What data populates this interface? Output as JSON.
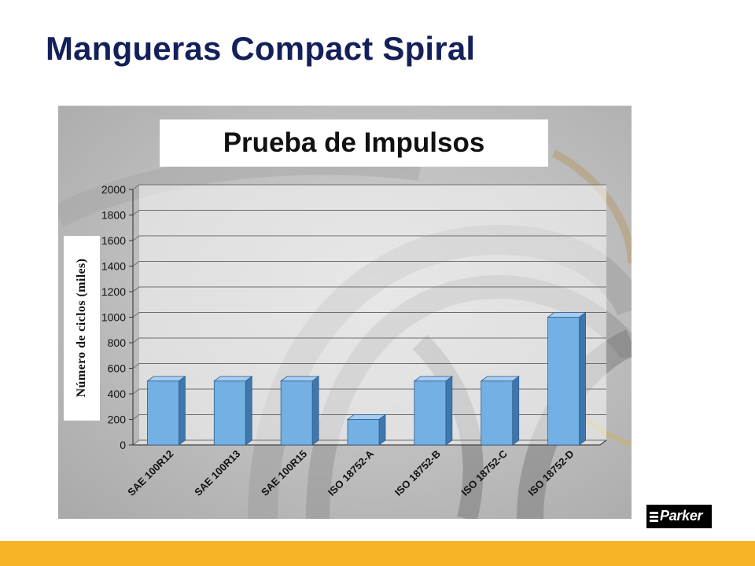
{
  "slide": {
    "title": "Mangueras Compact Spiral"
  },
  "logo": {
    "text": "Parker",
    "icon": "parker-logo-icon"
  },
  "colors": {
    "title": "#14205a",
    "bar": "#73b0e3",
    "footer": "#f7b525"
  },
  "chart_data": {
    "type": "bar",
    "title": "Prueba de Impulsos",
    "xlabel": "",
    "ylabel": "Número de ciclos (miles)",
    "categories": [
      "SAE 100R12",
      "SAE 100R13",
      "SAE 100R15",
      "ISO 18752-A",
      "ISO 18752-B",
      "ISO 18752-C",
      "ISO 18752-D"
    ],
    "values": [
      500,
      500,
      500,
      200,
      500,
      500,
      1000
    ],
    "ylim": [
      0,
      2000
    ],
    "yticks": [
      0,
      200,
      400,
      600,
      800,
      1000,
      1200,
      1400,
      1600,
      1800,
      2000
    ],
    "grid": true,
    "style": "3d"
  }
}
